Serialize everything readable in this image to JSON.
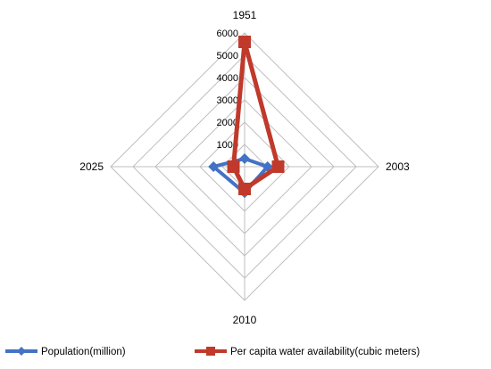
{
  "chart_data": {
    "type": "radar",
    "categories": [
      "1951",
      "2003",
      "2010",
      "2025"
    ],
    "rmax": 6000,
    "ticks": [
      0,
      1000,
      2000,
      3000,
      4000,
      5000,
      6000
    ],
    "grid": true,
    "legend_position": "bottom",
    "series": [
      {
        "name": "Population(million)",
        "values": [
          361,
          1027,
          1170,
          1394
        ],
        "color": "#4472C4"
      },
      {
        "name": "Per capita water availability(cubic meters)",
        "values": [
          5600,
          1500,
          1000,
          500
        ],
        "color": "#C0392B"
      }
    ]
  }
}
